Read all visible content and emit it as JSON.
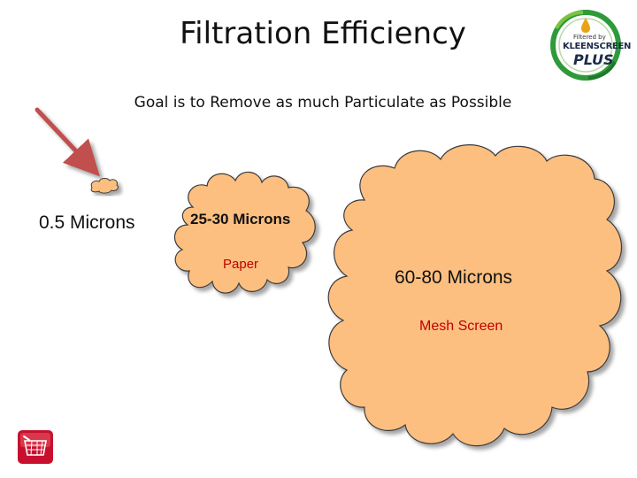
{
  "title": "Filtration Efficiency",
  "subtitle": "Goal is to Remove as much Particulate as Possible",
  "particles": {
    "small": {
      "label": "0.5 Microns"
    },
    "medium": {
      "label": "25-30 Microns",
      "caption": "Paper"
    },
    "large": {
      "label": "60-80 Microns",
      "caption": "Mesh Screen"
    }
  },
  "logo": {
    "line1": "Filtered by",
    "line2": "KLEENSCREEN",
    "line3": "PLUS"
  },
  "colors": {
    "cloud_fill": "#fdbf80",
    "cloud_outline": "#3a3a3a",
    "arrow": "#c0504d",
    "caption": "#c00000",
    "logo_ring": "#2e9a3a"
  },
  "icons": {
    "arrow": "arrow-icon",
    "corner": "basket-icon",
    "logo": "kleenscreen-logo"
  }
}
